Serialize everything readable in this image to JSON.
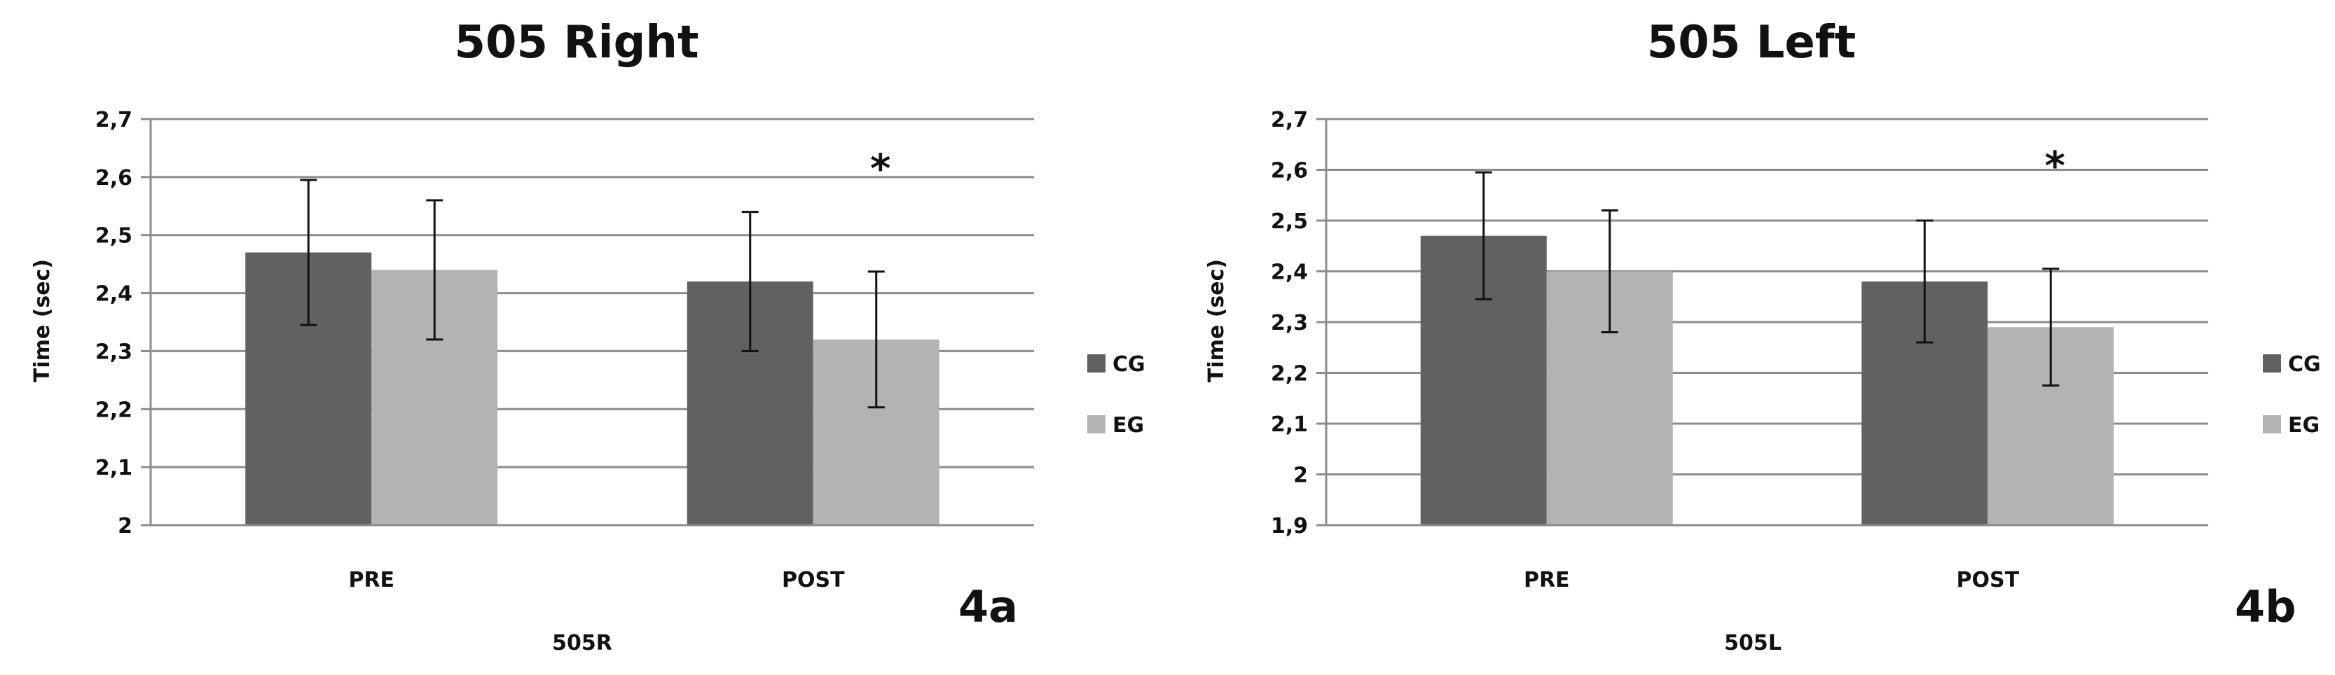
{
  "chart_data": [
    {
      "type": "bar",
      "title": "505 Right",
      "xlabel": "505R",
      "ylabel": "Time (sec)",
      "panel_label": "4a",
      "categories": [
        "PRE",
        "POST"
      ],
      "ylim": [
        2,
        2.7
      ],
      "yticks": [
        "2",
        "2,1",
        "2,2",
        "2,3",
        "2,4",
        "2,5",
        "2,6",
        "2,7"
      ],
      "ytick_values": [
        2,
        2.1,
        2.2,
        2.3,
        2.4,
        2.5,
        2.6,
        2.7
      ],
      "grid": true,
      "legend_position": "right",
      "series": [
        {
          "name": "CG",
          "color": "#616161",
          "values": [
            2.47,
            2.42
          ],
          "errors": [
            0.125,
            0.12
          ]
        },
        {
          "name": "EG",
          "color": "#b3b3b3",
          "values": [
            2.44,
            2.32
          ],
          "errors": [
            0.12,
            0.117
          ]
        }
      ],
      "annotations": [
        {
          "text": "*",
          "category": "POST"
        }
      ]
    },
    {
      "type": "bar",
      "title": "505 Left",
      "xlabel": "505L",
      "ylabel": "Time (sec)",
      "panel_label": "4b",
      "categories": [
        "PRE",
        "POST"
      ],
      "ylim": [
        1.9,
        2.7
      ],
      "yticks": [
        "1,9",
        "2",
        "2,1",
        "2,2",
        "2,3",
        "2,4",
        "2,5",
        "2,6",
        "2,7"
      ],
      "ytick_values": [
        1.9,
        2.0,
        2.1,
        2.2,
        2.3,
        2.4,
        2.5,
        2.6,
        2.7
      ],
      "grid": true,
      "legend_position": "right",
      "series": [
        {
          "name": "CG",
          "color": "#616161",
          "values": [
            2.47,
            2.38
          ],
          "errors": [
            0.125,
            0.12
          ]
        },
        {
          "name": "EG",
          "color": "#b3b3b3",
          "values": [
            2.4,
            2.29
          ],
          "errors": [
            0.12,
            0.115
          ]
        }
      ],
      "annotations": [
        {
          "text": "*",
          "category": "POST"
        }
      ]
    }
  ]
}
